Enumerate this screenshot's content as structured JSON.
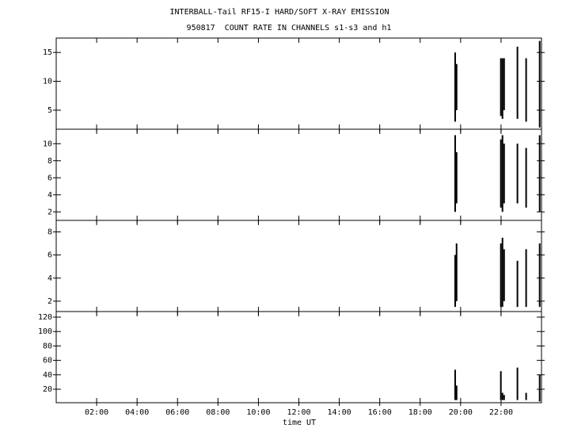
{
  "chart_data": [
    {
      "type": "range",
      "title": "INTERBALL-Tail RF15-I HARD/SOFT X-RAY EMISSION",
      "subtitle": "950817  COUNT RATE IN CHANNELS s1-s3 and h1",
      "xlim": [
        0,
        24
      ],
      "ylim": [
        1.7,
        17.5
      ],
      "yticks": [
        5,
        10,
        15
      ],
      "color": "#000000",
      "x": [
        19.73,
        19.8,
        21.99,
        22.07,
        22.15,
        22.81,
        23.24,
        23.91
      ],
      "low": [
        3,
        5,
        4,
        3.5,
        5,
        3.5,
        3,
        2
      ],
      "high": [
        15,
        13,
        14,
        14,
        14,
        16,
        14,
        17
      ]
    },
    {
      "type": "range",
      "xlim": [
        0,
        24
      ],
      "ylim": [
        1,
        11.7
      ],
      "yticks": [
        2,
        4,
        6,
        8,
        10
      ],
      "color": "#000000",
      "x": [
        19.73,
        19.8,
        21.99,
        22.07,
        22.15,
        22.81,
        23.24,
        23.91
      ],
      "low": [
        2,
        3,
        2.5,
        2,
        3,
        3,
        2.5,
        2
      ],
      "high": [
        11,
        9,
        10.5,
        11,
        10,
        10,
        9.5,
        11
      ]
    },
    {
      "type": "range",
      "xlim": [
        0,
        24
      ],
      "ylim": [
        1.1,
        9.0
      ],
      "yticks": [
        2,
        4,
        6,
        8
      ],
      "color": "#000000",
      "x": [
        19.73,
        19.8,
        21.99,
        22.07,
        22.15,
        22.81,
        23.24,
        23.91
      ],
      "low": [
        1.5,
        2,
        1.5,
        1.5,
        2,
        1.5,
        1.5,
        1.5
      ],
      "high": [
        6,
        7,
        7,
        7.5,
        6.5,
        5.5,
        6.5,
        7
      ]
    },
    {
      "type": "range",
      "xlabel": "time UT",
      "xlim": [
        0,
        24
      ],
      "ylim": [
        1.3,
        127.7
      ],
      "yticks": [
        20,
        40,
        60,
        80,
        100,
        120
      ],
      "color": "#000000",
      "xticks": [
        {
          "value": 2,
          "label": "02:00"
        },
        {
          "value": 4,
          "label": "04:00"
        },
        {
          "value": 6,
          "label": "06:00"
        },
        {
          "value": 8,
          "label": "08:00"
        },
        {
          "value": 10,
          "label": "10:00"
        },
        {
          "value": 12,
          "label": "12:00"
        },
        {
          "value": 14,
          "label": "14:00"
        },
        {
          "value": 16,
          "label": "16:00"
        },
        {
          "value": 18,
          "label": "18:00"
        },
        {
          "value": 20,
          "label": "20:00"
        },
        {
          "value": 22,
          "label": "22:00"
        }
      ],
      "x": [
        19.73,
        19.8,
        21.99,
        22.07,
        22.15,
        22.81,
        23.24,
        23.91
      ],
      "low": [
        5,
        5,
        5,
        5,
        5,
        5,
        5,
        3
      ],
      "high": [
        47,
        25,
        45,
        15,
        12,
        50,
        15,
        40
      ]
    }
  ]
}
